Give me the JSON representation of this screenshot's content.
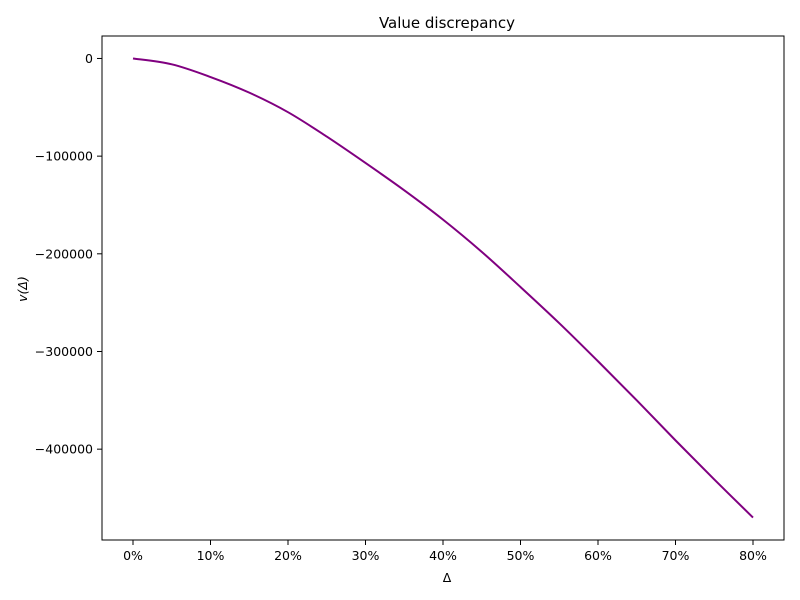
{
  "chart_data": {
    "type": "line",
    "title": "Value discrepancy",
    "xlabel": "Δ",
    "ylabel": "v(Δ)",
    "x_ticks": [
      {
        "value": 0.0,
        "label": "0%"
      },
      {
        "value": 0.1,
        "label": "10%"
      },
      {
        "value": 0.2,
        "label": "20%"
      },
      {
        "value": 0.3,
        "label": "30%"
      },
      {
        "value": 0.4,
        "label": "40%"
      },
      {
        "value": 0.5,
        "label": "50%"
      },
      {
        "value": 0.6,
        "label": "60%"
      },
      {
        "value": 0.7,
        "label": "70%"
      },
      {
        "value": 0.8,
        "label": "80%"
      }
    ],
    "y_ticks": [
      {
        "value": 0,
        "label": "0"
      },
      {
        "value": -100000,
        "label": "−100000"
      },
      {
        "value": -200000,
        "label": "−200000"
      },
      {
        "value": -300000,
        "label": "−300000"
      },
      {
        "value": -400000,
        "label": "−400000"
      }
    ],
    "xlim": [
      -0.04,
      0.84
    ],
    "ylim": [
      -493000,
      23000
    ],
    "grid": false,
    "series": [
      {
        "color": "#800080",
        "x": [
          0.0,
          0.05,
          0.1,
          0.15,
          0.2,
          0.25,
          0.3,
          0.35,
          0.4,
          0.45,
          0.5,
          0.55,
          0.6,
          0.65,
          0.7,
          0.75,
          0.8
        ],
        "y": [
          0,
          -6000,
          -19000,
          -35000,
          -55000,
          -80000,
          -107000,
          -135000,
          -165000,
          -198000,
          -234000,
          -271000,
          -310000,
          -350000,
          -391000,
          -431000,
          -470000
        ]
      }
    ]
  }
}
